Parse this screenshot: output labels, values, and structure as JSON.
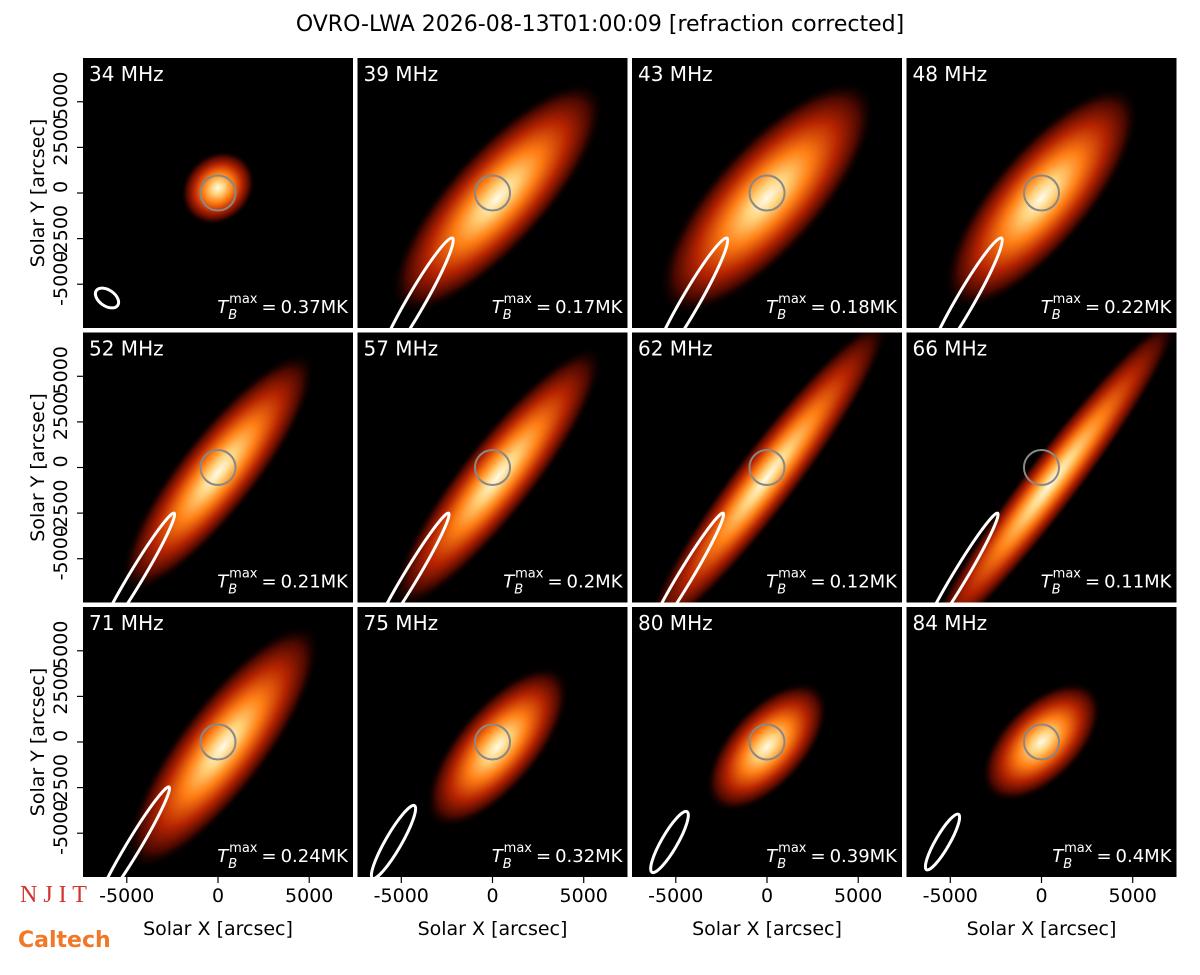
{
  "chart_data": {
    "type": "image-grid",
    "title": "OVRO-LWA 2026-08-13T01:00:09 [refraction corrected]",
    "xlabel": "Solar X [arcsec]",
    "ylabel": "Solar Y [arcsec]",
    "xlim": [
      -7400,
      7400
    ],
    "ylim": [
      -7400,
      7400
    ],
    "xticks": [
      -5000,
      0,
      5000
    ],
    "yticks": [
      -5000,
      -2500,
      0,
      2500,
      5000
    ],
    "categories": [
      "34 MHz",
      "39 MHz",
      "43 MHz",
      "48 MHz",
      "52 MHz",
      "57 MHz",
      "62 MHz",
      "66 MHz",
      "71 MHz",
      "75 MHz",
      "80 MHz",
      "84 MHz"
    ],
    "tb_symbol": "T",
    "tb_sub": "B",
    "tb_sup": "max",
    "tb_eq": "=",
    "values": [
      0.37,
      0.17,
      0.18,
      0.22,
      0.21,
      0.2,
      0.12,
      0.11,
      0.24,
      0.32,
      0.39,
      0.4
    ],
    "value_labels": [
      "0.37MK",
      "0.17MK",
      "0.18MK",
      "0.22MK",
      "0.21MK",
      "0.2MK",
      "0.12MK",
      "0.11MK",
      "0.24MK",
      "0.32MK",
      "0.39MK",
      "0.4MK"
    ],
    "logos": [
      "N J I T",
      "Caltech"
    ]
  }
}
